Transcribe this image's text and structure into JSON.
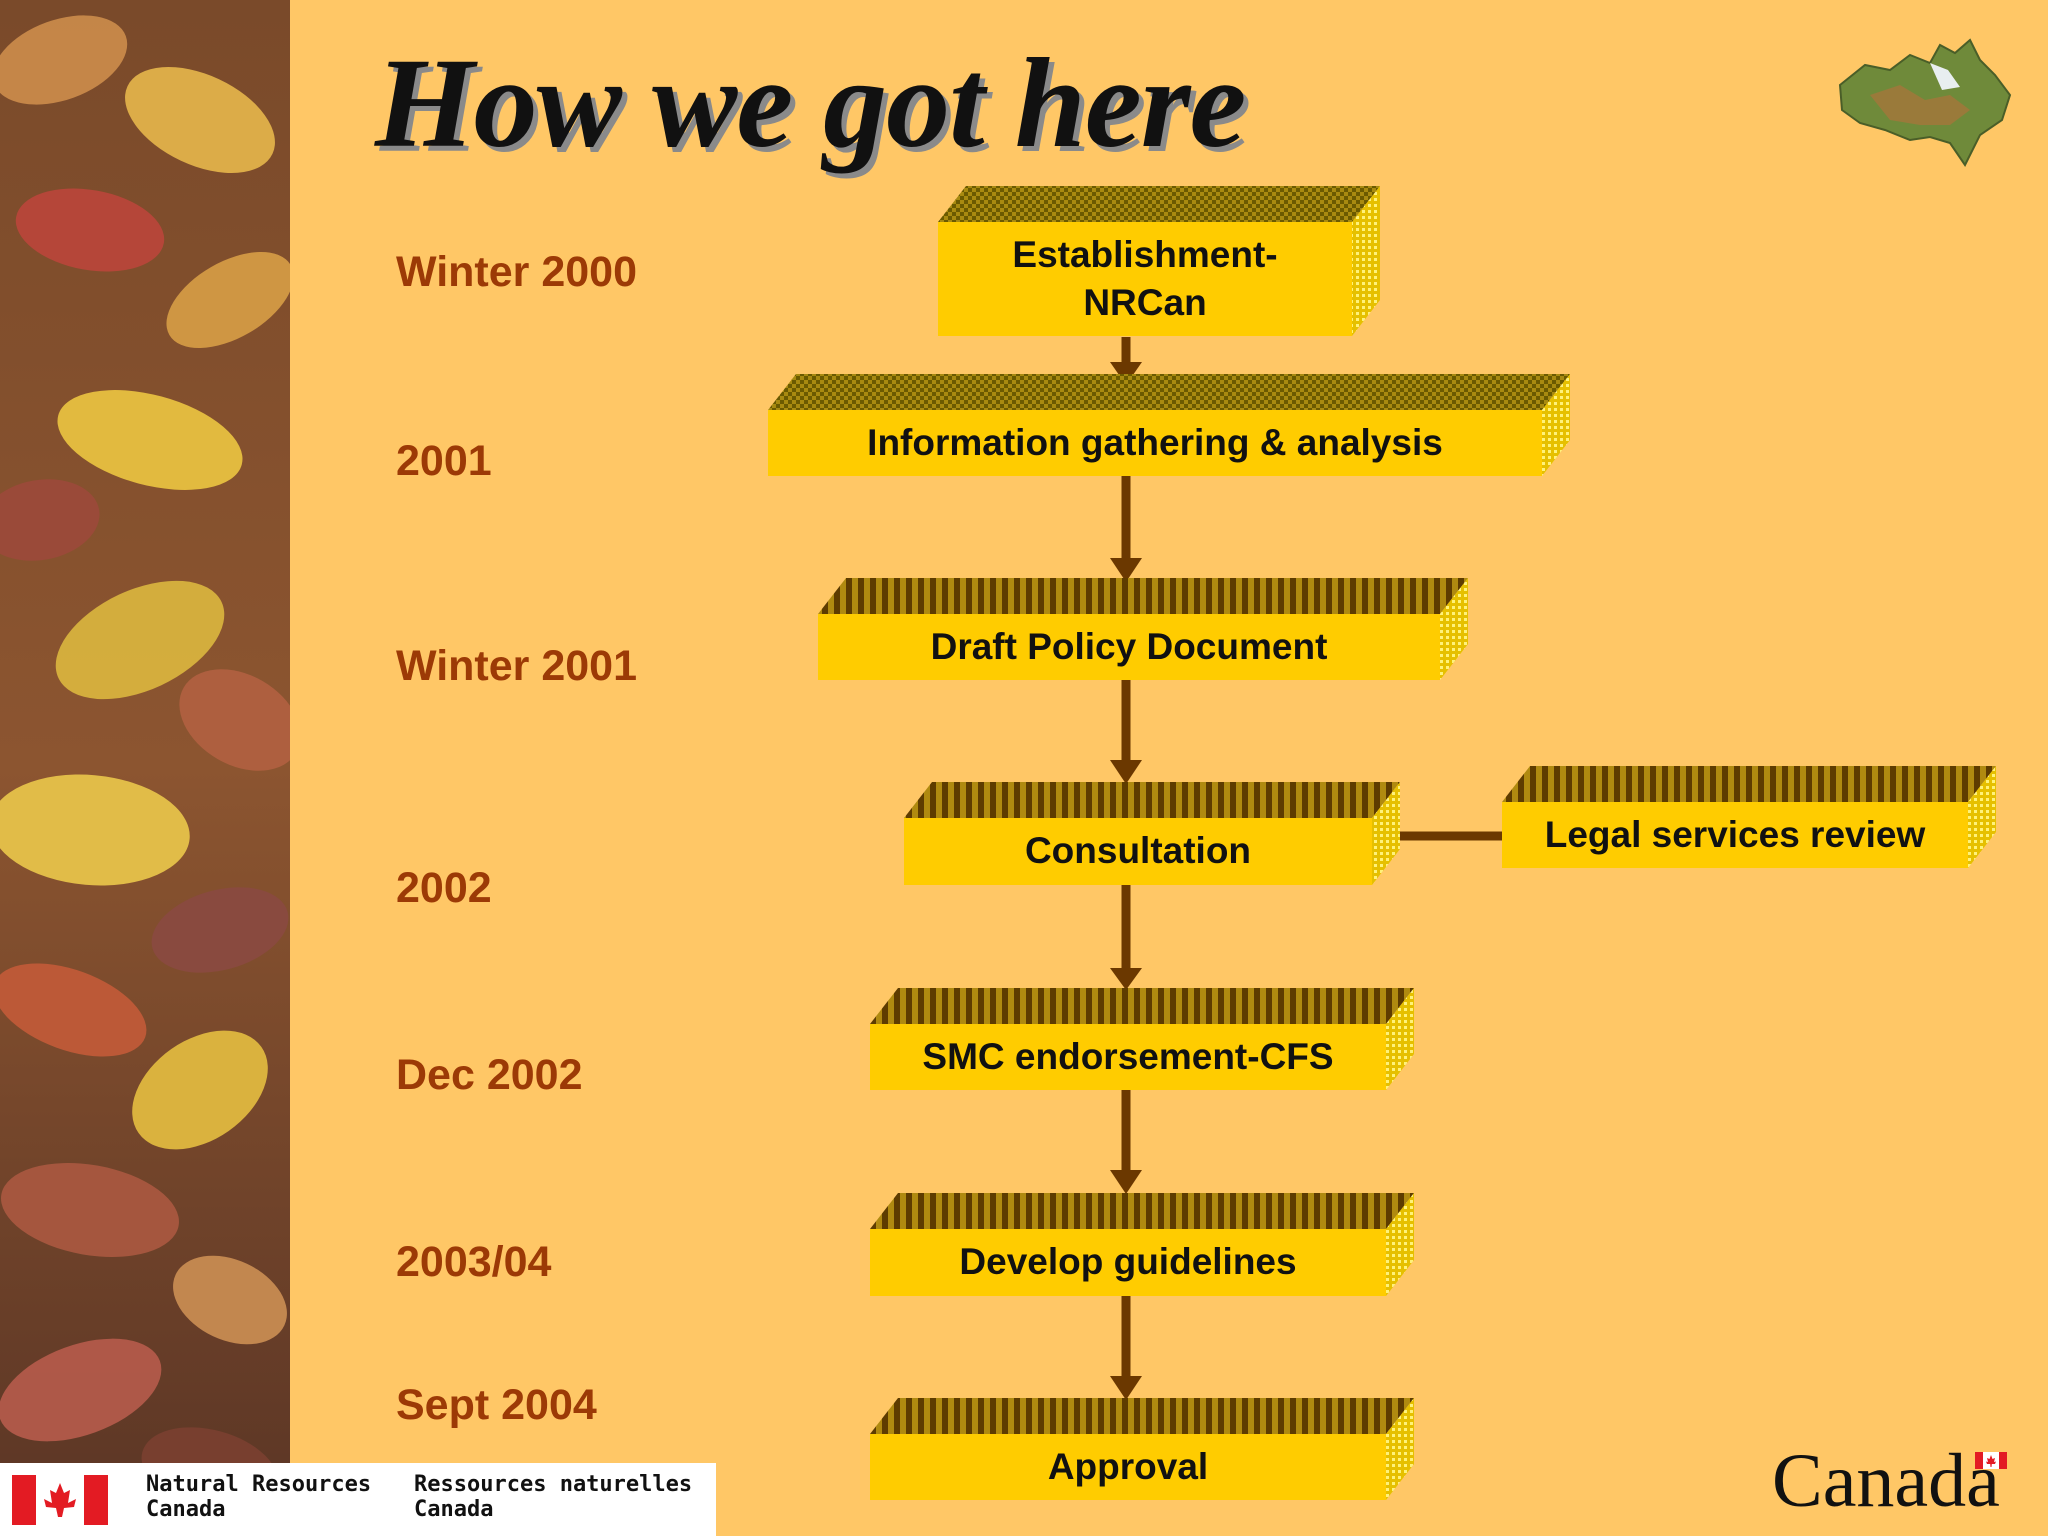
{
  "title": "How we got here",
  "timeline": {
    "dates": [
      "Winter 2000",
      "2001",
      "Winter 2001",
      "2002",
      "Dec 2002",
      "2003/04",
      "Sept 2004"
    ]
  },
  "flow": {
    "steps": [
      {
        "label_line1": "Establishment-",
        "label_line2": "NRCan"
      },
      {
        "label": "Information gathering & analysis"
      },
      {
        "label": "Draft Policy Document"
      },
      {
        "label": "Consultation"
      },
      {
        "label": "SMC endorsement-CFS"
      },
      {
        "label": "Develop guidelines"
      },
      {
        "label": "Approval"
      }
    ],
    "side_step": {
      "label": "Legal services review"
    }
  },
  "footer": {
    "dept_en_line1": "Natural Resources",
    "dept_en_line2": "Canada",
    "dept_fr_line1": "Ressources naturelles",
    "dept_fr_line2": "Canada",
    "wordmark": "Canada"
  },
  "colors": {
    "background": "#ffc766",
    "box_face": "#ffcc00",
    "box_top": "#6b5a00",
    "arrow": "#6b3800",
    "date_text": "#9c3a06"
  }
}
